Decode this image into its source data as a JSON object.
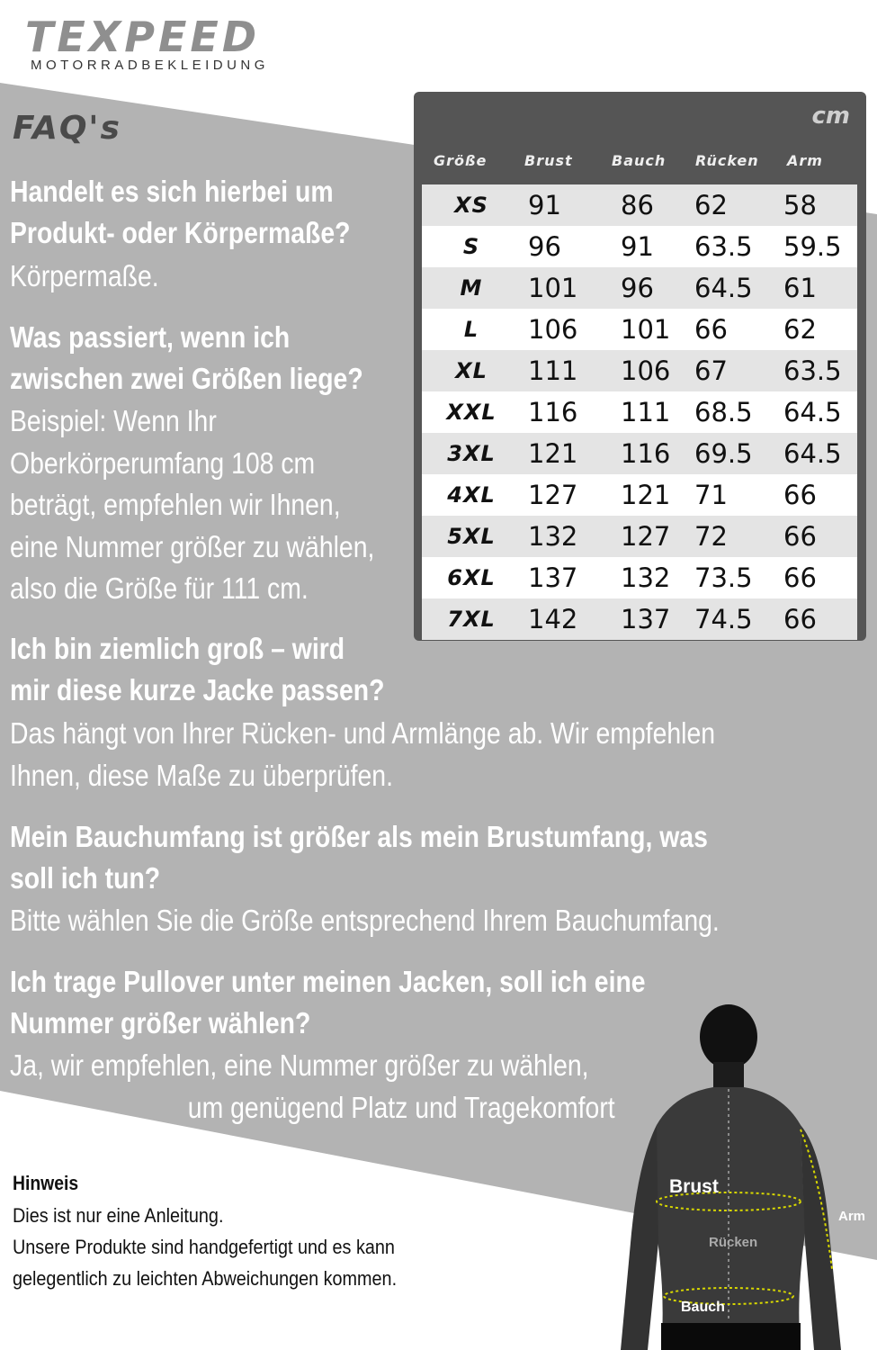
{
  "brand": {
    "name": "TEXPEED",
    "subtitle": "MOTORRADBEKLEIDUNG"
  },
  "faq_title": "FAQ's",
  "faq": [
    {
      "question": [
        "Handelt es sich hierbei um",
        "Produkt- oder Körpermaße?"
      ],
      "answer": [
        "Körpermaße."
      ]
    },
    {
      "question": [
        "Was passiert, wenn ich",
        "zwischen zwei Größen liege?"
      ],
      "answer": [
        "Beispiel: Wenn Ihr",
        "Oberkörperumfang 108 cm",
        "beträgt, empfehlen wir Ihnen,",
        "eine Nummer größer zu wählen,",
        "also die Größe für 111 cm."
      ]
    },
    {
      "question": [
        "Ich bin ziemlich groß – wird",
        "mir diese kurze Jacke passen?"
      ],
      "answer": [
        "Das hängt von Ihrer Rücken- und Armlänge ab. Wir empfehlen",
        "Ihnen, diese Maße zu überprüfen."
      ]
    },
    {
      "question": [
        "Mein Bauchumfang ist größer als mein Brustumfang, was",
        "soll ich tun?"
      ],
      "answer": [
        "Bitte wählen Sie die Größe entsprechend Ihrem Bauchumfang."
      ]
    },
    {
      "question": [
        "Ich trage Pullover unter meinen Jacken, soll ich eine",
        "Nummer größer wählen?"
      ],
      "answer": [
        "Ja, wir empfehlen, eine Nummer größer zu wählen,",
        "um genügend Platz und Tragekomfort"
      ]
    }
  ],
  "size_table": {
    "unit": "cm",
    "headers": [
      "Größe",
      "Brust",
      "Bauch",
      "Rücken",
      "Arm"
    ],
    "rows": [
      [
        "XS",
        "91",
        "86",
        "62",
        "58"
      ],
      [
        "S",
        "96",
        "91",
        "63.5",
        "59.5"
      ],
      [
        "M",
        "101",
        "96",
        "64.5",
        "61"
      ],
      [
        "L",
        "106",
        "101",
        "66",
        "62"
      ],
      [
        "XL",
        "111",
        "106",
        "67",
        "63.5"
      ],
      [
        "XXL",
        "116",
        "111",
        "68.5",
        "64.5"
      ],
      [
        "3XL",
        "121",
        "116",
        "69.5",
        "64.5"
      ],
      [
        "4XL",
        "127",
        "121",
        "71",
        "66"
      ],
      [
        "5XL",
        "132",
        "127",
        "72",
        "66"
      ],
      [
        "6XL",
        "137",
        "132",
        "73.5",
        "66"
      ],
      [
        "7XL",
        "142",
        "137",
        "74.5",
        "66"
      ]
    ]
  },
  "note": {
    "title": "Hinweis",
    "lines": [
      "Dies ist nur eine Anleitung.",
      "Unsere Produkte sind handgefertigt und es kann",
      "gelegentlich zu leichten Abweichungen kommen."
    ]
  },
  "figure_labels": {
    "brust": "Brust",
    "ruecken": "Rücken",
    "arm": "Arm",
    "bauch": "Bauch"
  },
  "colors": {
    "band": "#b3b3b3",
    "table_frame": "#555555",
    "table_row_alt": "#e4e4e4",
    "logo": "#8f8f8f"
  },
  "icons": [
    "silhouette-figure"
  ]
}
